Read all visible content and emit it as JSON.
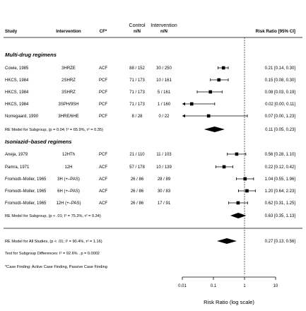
{
  "chart_data": {
    "type": "forest",
    "xlabel": "Risk Ratio (log scale)",
    "x_scale": "log",
    "xlim": [
      0.01,
      10
    ],
    "x_ticks": [
      0.01,
      0.1,
      1,
      10
    ],
    "x_tick_labels": [
      "0.01",
      "0.1",
      "1",
      "10"
    ],
    "reference_line": 1,
    "headers": {
      "study": "Study",
      "intervention": "Intervention",
      "cf": "CF*",
      "control": [
        "Control",
        "n/N"
      ],
      "intervention_nn": [
        "Intervention",
        "n/N"
      ],
      "estimate": "Risk Ratio [95% CI]"
    },
    "groups": [
      {
        "label": "Multi-drug regimens",
        "studies": [
          {
            "study": "Cowie, 1985",
            "intervention": "3HRZE",
            "cf": "ACF",
            "control": "88 / 152",
            "treated": "30 / 250",
            "rr": 0.21,
            "lo": 0.14,
            "hi": 0.3,
            "text": "0.21 [0.14, 0.30]"
          },
          {
            "study": "HKCS, 1984",
            "intervention": "2SHRZ",
            "cf": "PCF",
            "control": "71 / 173",
            "treated": "10 / 161",
            "rr": 0.15,
            "lo": 0.08,
            "hi": 0.3,
            "text": "0.15 [0.08, 0.30]"
          },
          {
            "study": "HKCS, 1984",
            "intervention": "3SHRZ",
            "cf": "PCF",
            "control": "71 / 173",
            "treated": "5 / 161",
            "rr": 0.08,
            "lo": 0.03,
            "hi": 0.19,
            "text": "0.08 [0.03, 0.19]"
          },
          {
            "study": "HKCS, 1984",
            "intervention": "3SPH/9SH",
            "cf": "PCF",
            "control": "71 / 173",
            "treated": "1 / 160",
            "rr": 0.02,
            "lo": 0.0,
            "hi": 0.11,
            "text": "0.02 [0.00, 0.11]"
          },
          {
            "study": "Norregaard, 1990",
            "intervention": "3HRE/6HE",
            "cf": "PCF",
            "control": "8 / 28",
            "treated": "0 / 22",
            "rr": 0.07,
            "lo": 0.0,
            "hi": 1.23,
            "text": "0.07 [0.00, 1.23]"
          }
        ],
        "summary": {
          "label": "RE Model for Subgroup, (p = 0.04; I² = 65.9%, τ² = 0.35)",
          "rr": 0.11,
          "lo": 0.05,
          "hi": 0.23,
          "text": "0.11 [0.05, 0.23]"
        }
      },
      {
        "label": "Isoniazid–based regimens",
        "studies": [
          {
            "study": "Aneja, 1979",
            "intervention": "12HTh",
            "cf": "PCF",
            "control": "21 / 110",
            "treated": "11 / 103",
            "rr": 0.56,
            "lo": 0.28,
            "hi": 1.1,
            "text": "0.56 [0.28, 1.10]"
          },
          {
            "study": "Pamra, 1971",
            "intervention": "12H",
            "cf": "ACF",
            "control": "57 / 178",
            "treated": "10 / 139",
            "rr": 0.22,
            "lo": 0.12,
            "hi": 0.42,
            "text": "0.22 [0.12, 0.42]"
          },
          {
            "study": "Fromodt–Moller, 1965",
            "intervention": "3H (+–PAS)",
            "cf": "ACF",
            "control": "26 / 86",
            "treated": "28 / 89",
            "rr": 1.04,
            "lo": 0.55,
            "hi": 1.96,
            "text": "1.04 [0.55, 1.96]"
          },
          {
            "study": "Fromodt–Moller, 1965",
            "intervention": "6H (+–PAS)",
            "cf": "ACF",
            "control": "26 / 86",
            "treated": "30 / 83",
            "rr": 1.2,
            "lo": 0.64,
            "hi": 2.23,
            "text": "1.20 [0.64, 2.23]"
          },
          {
            "study": "Fromodt–Moller, 1965",
            "intervention": "12H (+–PAS)",
            "cf": "ACF",
            "control": "26 / 86",
            "treated": "17 / 91",
            "rr": 0.62,
            "lo": 0.31,
            "hi": 1.25,
            "text": "0.62 [0.31, 1.25]"
          }
        ],
        "summary": {
          "label": "RE Model for Subgroup, (p < .01; I² = 75.3%, τ² = 0.34)",
          "rr": 0.63,
          "lo": 0.35,
          "hi": 1.13,
          "text": "0.63 [0.35, 1.13]"
        }
      }
    ],
    "overall": {
      "label": "RE Model for All Studies, (p < .01; I² = 90.4%, τ² = 1.16)",
      "rr": 0.27,
      "lo": 0.13,
      "hi": 0.56,
      "text": "0.27 [0.13, 0.56]"
    },
    "footnotes": [
      "Test for Subgroup Differences: Ι² = 92.6% , p = 0.0002",
      "*Case Finding: Active Case Finding, Passive Case Finding"
    ]
  }
}
